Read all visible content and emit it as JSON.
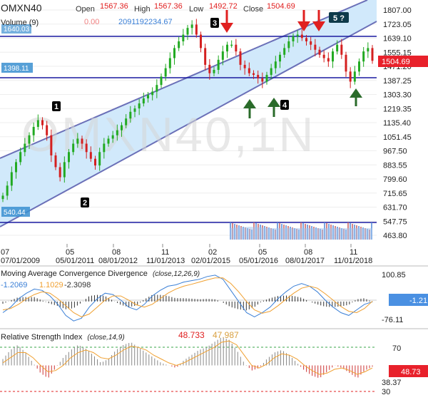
{
  "header": {
    "symbol": "OMXN40",
    "open_label": "Open",
    "open_value": "1567.36",
    "high_label": "High",
    "high_value": "1567.36",
    "low_label": "Low",
    "low_value": "1492.72",
    "close_label": "Close",
    "close_value": "1504.69",
    "volume_label": "Volume (9)",
    "volume_a": "0.00",
    "volume_b": "2091192234.67"
  },
  "watermark": "OMXN40,1N",
  "price_tags": {
    "current": "1504.69",
    "line_1640": "1640.03",
    "line_1398": "1398.11",
    "line_540": "540.44"
  },
  "colors": {
    "up": "#22aa22",
    "down": "#d42020",
    "channel": "#cfe8fb",
    "hline": "#1a1aa0",
    "macd_blue": "#3a7fd6",
    "signal_orange": "#f0a030",
    "price_tag": "#e8212b",
    "macd_tag": "#4a90e2"
  },
  "markers": {
    "numbers": [
      "1",
      "2",
      "3",
      "4",
      "5 ?"
    ],
    "down_arrows": 3,
    "up_arrows": 3
  },
  "chart_data": [
    {
      "type": "line",
      "title": "OMXN40",
      "y_ticks": [
        "1807.00",
        "1723.05",
        "1639.10",
        "1555.15",
        "1471.20",
        "1387.25",
        "1303.30",
        "1219.35",
        "1135.40",
        "1051.45",
        "967.50",
        "883.55",
        "799.60",
        "715.65",
        "631.70",
        "547.75",
        "463.80"
      ],
      "x_ticks": [
        "07",
        "07/01/2009",
        "05",
        "05/01/2011",
        "08",
        "08/01/2012",
        "11",
        "11/01/2013",
        "02",
        "02/01/2015",
        "05",
        "05/01/2016",
        "08",
        "08/01/2017",
        "11",
        "11/01/2018"
      ],
      "ylim": [
        430,
        1840
      ],
      "horizontal_lines": [
        1640,
        1398,
        540
      ],
      "series": [
        {
          "values": [
            700,
            760,
            840,
            900,
            960,
            1010,
            1060,
            1110,
            1150,
            1120,
            1060,
            940,
            870,
            810,
            900,
            960,
            1010,
            1040,
            1010,
            960,
            920,
            880,
            960,
            1010,
            1040,
            1060,
            1090,
            1120,
            1160,
            1200,
            1220,
            1250,
            1280,
            1300,
            1320,
            1360,
            1410,
            1460,
            1520,
            1580,
            1620,
            1660,
            1700,
            1720,
            1660,
            1580,
            1480,
            1430,
            1450,
            1510,
            1560,
            1600,
            1600,
            1560,
            1480,
            1460,
            1430,
            1420,
            1400,
            1380,
            1420,
            1460,
            1500,
            1540,
            1580,
            1620,
            1650,
            1660,
            1640,
            1620,
            1600,
            1570,
            1540,
            1520,
            1500,
            1560,
            1600,
            1540,
            1440,
            1380,
            1440,
            1500,
            1560,
            1580,
            1504
          ]
        }
      ]
    },
    {
      "type": "line",
      "title": "Moving Average Convergence Divergence",
      "params": "(close,12,26,9)",
      "legend_values": [
        "-1.2069",
        "1.1029",
        "-2.3098"
      ],
      "y_ticks": [
        "100.85",
        "-76.11"
      ],
      "current": "-1.21",
      "ylim": [
        -90,
        110
      ],
      "series": [
        {
          "name": "MACD",
          "values": [
            -40,
            -20,
            10,
            30,
            45,
            40,
            20,
            -10,
            -50,
            -70,
            -60,
            -20,
            10,
            30,
            25,
            5,
            -20,
            -30,
            -10,
            20,
            40,
            55,
            60,
            70,
            75,
            80,
            90,
            95,
            80,
            40,
            0,
            -40,
            -55,
            -40,
            -20,
            10,
            35,
            55,
            65,
            55,
            35,
            5,
            -20,
            -40,
            -50,
            -30,
            -10,
            -1
          ]
        },
        {
          "name": "Signal",
          "values": [
            -30,
            -25,
            -10,
            10,
            25,
            35,
            30,
            10,
            -15,
            -40,
            -55,
            -45,
            -20,
            5,
            20,
            20,
            5,
            -12,
            -20,
            -10,
            10,
            30,
            45,
            55,
            62,
            70,
            78,
            85,
            85,
            65,
            35,
            0,
            -30,
            -42,
            -35,
            -15,
            8,
            30,
            48,
            55,
            48,
            28,
            5,
            -18,
            -35,
            -40,
            -25,
            1
          ]
        }
      ]
    },
    {
      "type": "line",
      "title": "Relative Strength Index",
      "params": "(close,14,9)",
      "legend_values": [
        "48.733",
        "47.987"
      ],
      "y_ticks": [
        "70",
        "38.37",
        "30"
      ],
      "current": "48.73",
      "ylim": [
        27,
        78
      ],
      "series": [
        {
          "name": "RSI",
          "values": [
            55,
            62,
            66,
            60,
            52,
            44,
            40,
            48,
            56,
            62,
            66,
            63,
            58,
            52,
            55,
            62,
            66,
            68,
            64,
            60,
            56,
            52,
            50,
            48,
            54,
            58,
            62,
            64,
            68,
            72,
            70,
            62,
            52,
            46,
            48,
            55,
            60,
            62,
            58,
            52,
            46,
            42,
            40,
            45,
            50,
            48,
            44,
            40,
            46,
            49
          ]
        },
        {
          "name": "Signal",
          "values": [
            52,
            56,
            60,
            60,
            56,
            50,
            45,
            46,
            50,
            56,
            60,
            62,
            60,
            56,
            55,
            58,
            62,
            65,
            64,
            62,
            58,
            55,
            52,
            50,
            52,
            55,
            58,
            61,
            64,
            68,
            69,
            66,
            58,
            50,
            48,
            51,
            56,
            59,
            58,
            55,
            50,
            46,
            43,
            44,
            47,
            48,
            46,
            43,
            45,
            48
          ]
        }
      ]
    }
  ]
}
